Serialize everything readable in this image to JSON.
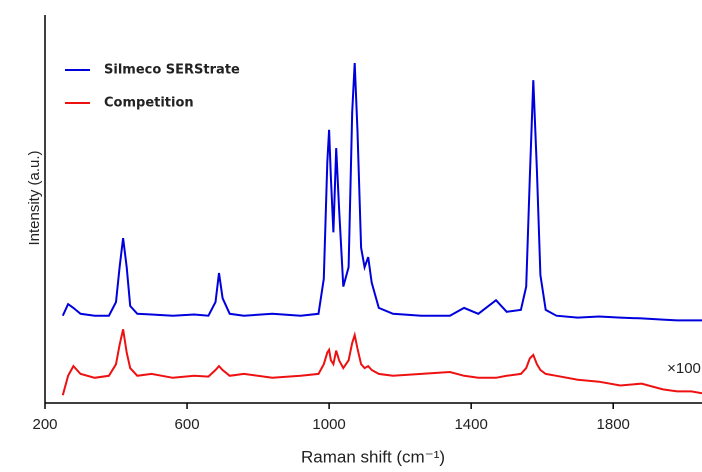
{
  "chart_data": {
    "type": "line",
    "xlabel": "Raman shift (cm⁻¹)",
    "ylabel": "Intensity (a.u.)",
    "annotation": "×100",
    "xlim": [
      200,
      2050
    ],
    "xticks": [
      200,
      600,
      1000,
      1400,
      1800
    ],
    "ylim": [
      0,
      100
    ],
    "legend": "upper left",
    "x": [
      250,
      265,
      280,
      300,
      340,
      380,
      400,
      410,
      420,
      430,
      440,
      460,
      500,
      560,
      620,
      660,
      680,
      690,
      700,
      720,
      760,
      840,
      920,
      970,
      985,
      995,
      1000,
      1005,
      1012,
      1020,
      1028,
      1040,
      1055,
      1065,
      1072,
      1080,
      1090,
      1100,
      1110,
      1120,
      1140,
      1180,
      1260,
      1340,
      1380,
      1420,
      1470,
      1500,
      1540,
      1555,
      1565,
      1575,
      1585,
      1595,
      1610,
      1640,
      1700,
      1760,
      1820,
      1880,
      1940,
      1980,
      2020,
      2050
    ],
    "series": [
      {
        "name": "Silmeco SERStrate",
        "color": "#0000dd",
        "values": [
          22.5,
          25.5,
          24.5,
          23,
          22.5,
          22.5,
          26,
          35,
          42.5,
          35,
          25,
          23,
          22.8,
          22.5,
          22.8,
          22.5,
          26,
          33.5,
          27,
          23,
          22.5,
          23,
          22.5,
          23,
          32,
          62,
          70.4,
          58,
          44,
          65.7,
          50,
          30,
          35,
          75,
          87.6,
          70,
          40,
          35,
          37.6,
          31,
          24.5,
          23,
          22.5,
          22.5,
          24.5,
          23,
          26.5,
          23.5,
          24,
          30,
          58,
          83.2,
          60,
          33,
          24,
          22.5,
          22,
          22.3,
          22,
          21.8,
          21.5,
          21.3,
          21.3,
          21.3
        ]
      },
      {
        "name": "Competition",
        "color": "#ee1111",
        "values": [
          2,
          7,
          9.5,
          7.5,
          6.5,
          7,
          10,
          15,
          19,
          13,
          9,
          7,
          7.5,
          6.5,
          7,
          6.8,
          8.5,
          9.5,
          8.5,
          7,
          7.5,
          6.5,
          7,
          7.5,
          10,
          13,
          13.7,
          11,
          10,
          13.5,
          11,
          9,
          11,
          15.5,
          17.5,
          14,
          10,
          9,
          9.5,
          8.5,
          7.5,
          7,
          7.5,
          8,
          7,
          6.5,
          6.5,
          7,
          7.5,
          9,
          11.5,
          12.4,
          10,
          8.5,
          7.5,
          7,
          6,
          5.5,
          4.5,
          5,
          3.5,
          3,
          3,
          2.5
        ]
      }
    ]
  }
}
